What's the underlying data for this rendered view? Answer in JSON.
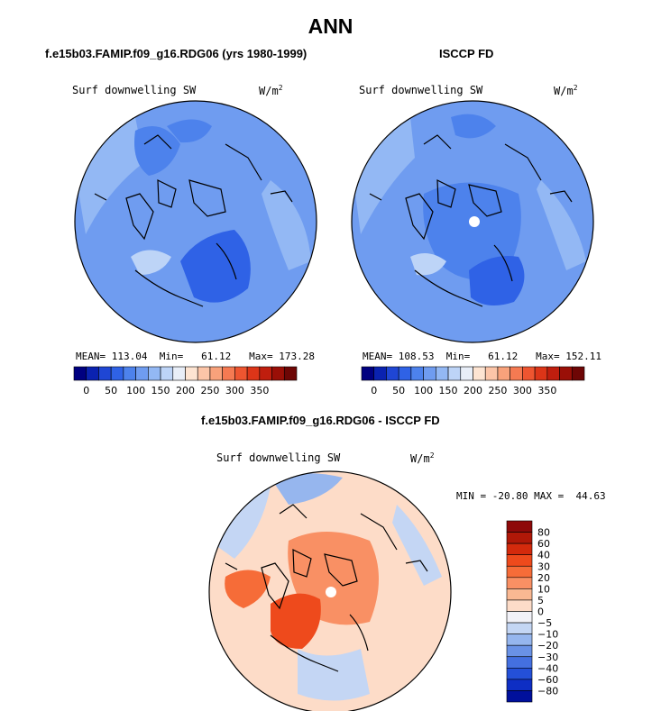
{
  "title": "ANN",
  "panels": [
    {
      "heading": "f.e15b03.FAMIP.f09_g16.RDG06 (yrs 1980-1999)",
      "variable": "Surf downwelling SW",
      "units": "W/m",
      "units_sup": "2",
      "stats": {
        "mean_label": "MEAN=",
        "mean": "113.04",
        "min_label": "Min=",
        "min": "61.12",
        "max_label": "Max=",
        "max": "173.28"
      }
    },
    {
      "heading": "ISCCP FD",
      "variable": "Surf downwelling SW",
      "units": "W/m",
      "units_sup": "2",
      "stats": {
        "mean_label": "MEAN=",
        "mean": "108.53",
        "min_label": "Min=",
        "min": "61.12",
        "max_label": "Max=",
        "max": "152.11"
      }
    },
    {
      "heading": "f.e15b03.FAMIP.f09_g16.RDG06 - ISCCP FD",
      "variable": "Surf downwelling SW",
      "units": "W/m",
      "units_sup": "2",
      "stats": {
        "min_label": "MIN =",
        "min": "-20.80",
        "max_label": "MAX =",
        "max": "44.63"
      }
    }
  ],
  "chart_data": [
    {
      "type": "heatmap",
      "projection": "north polar stereographic",
      "variable": "Surf downwelling SW",
      "units": "W/m^2",
      "summary": {
        "mean": 113.04,
        "min": 61.12,
        "max": 173.28
      },
      "colorbar": {
        "orientation": "horizontal",
        "tick_labels": [
          "0",
          "50",
          "100",
          "150",
          "200",
          "250",
          "300",
          "350"
        ],
        "colors": [
          "#000080",
          "#0a22b0",
          "#1f46d4",
          "#2f62e6",
          "#4d82ec",
          "#6f9cf0",
          "#93b8f4",
          "#bdd4f7",
          "#e8eef8",
          "#fde4d2",
          "#fcc5a8",
          "#f8a27b",
          "#f57a52",
          "#ee5530",
          "#dc3518",
          "#c01e0e",
          "#9a0f07",
          "#6e0605"
        ]
      }
    },
    {
      "type": "heatmap",
      "projection": "north polar stereographic",
      "variable": "Surf downwelling SW",
      "units": "W/m^2",
      "summary": {
        "mean": 108.53,
        "min": 61.12,
        "max": 152.11
      },
      "colorbar": {
        "orientation": "horizontal",
        "tick_labels": [
          "0",
          "50",
          "100",
          "150",
          "200",
          "250",
          "300",
          "350"
        ],
        "colors": [
          "#000080",
          "#0a22b0",
          "#1f46d4",
          "#2f62e6",
          "#4d82ec",
          "#6f9cf0",
          "#93b8f4",
          "#bdd4f7",
          "#e8eef8",
          "#fde4d2",
          "#fcc5a8",
          "#f8a27b",
          "#f57a52",
          "#ee5530",
          "#dc3518",
          "#c01e0e",
          "#9a0f07",
          "#6e0605"
        ]
      }
    },
    {
      "type": "heatmap",
      "projection": "north polar stereographic",
      "variable": "Surf downwelling SW",
      "units": "W/m^2",
      "summary": {
        "min": -20.8,
        "max": 44.63
      },
      "colorbar": {
        "orientation": "vertical",
        "tick_labels": [
          "80",
          "60",
          "40",
          "30",
          "20",
          "10",
          "5",
          "0",
          "−5",
          "−10",
          "−20",
          "−30",
          "−40",
          "−60",
          "−80"
        ],
        "colors": [
          "#8e0a0a",
          "#b01808",
          "#d42a0c",
          "#ee4a1c",
          "#f66c38",
          "#f99064",
          "#fab892",
          "#fddcc8",
          "#f2f2f8",
          "#c4d6f4",
          "#96b6ee",
          "#6a92e6",
          "#4470e0",
          "#2450d8",
          "#0e2ec4",
          "#00109c"
        ]
      }
    }
  ]
}
